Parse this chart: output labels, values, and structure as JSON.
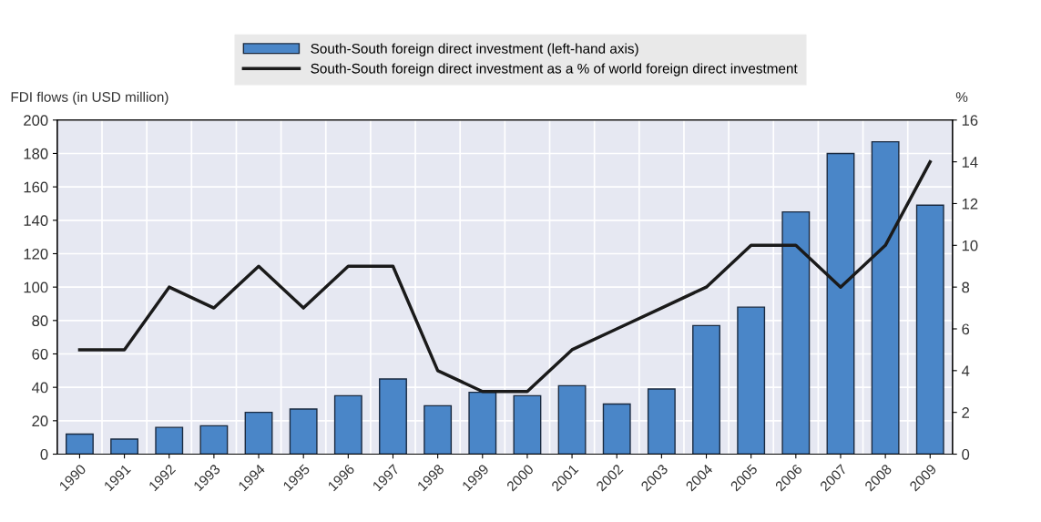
{
  "chart_data": {
    "type": "bar",
    "categories": [
      "1990",
      "1991",
      "1992",
      "1993",
      "1994",
      "1995",
      "1996",
      "1997",
      "1998",
      "1999",
      "2000",
      "2001",
      "2002",
      "2003",
      "2004",
      "2005",
      "2006",
      "2007",
      "2008",
      "2009"
    ],
    "series": [
      {
        "name": "South-South foreign direct investment (left-hand axis)",
        "color": "#4a86c8",
        "values": [
          12,
          9,
          16,
          17,
          25,
          27,
          35,
          45,
          29,
          37,
          35,
          41,
          30,
          39,
          77,
          88,
          145,
          180,
          187,
          149
        ]
      },
      {
        "name": "South-South foreign direct investment as a % of world foreign direct investment",
        "type": "line",
        "axis": "y2",
        "color": "#1a1a1a",
        "values": [
          5,
          5,
          8,
          7,
          9,
          7,
          9,
          9,
          4,
          3,
          3,
          5,
          6,
          7,
          8,
          10,
          10,
          8,
          10,
          14
        ]
      }
    ],
    "ylabel": "FDI flows (in USD million)",
    "y2label": "%",
    "ylim": [
      0,
      200
    ],
    "yticks": [
      0,
      20,
      40,
      60,
      80,
      100,
      120,
      140,
      160,
      180,
      200
    ],
    "y2lim": [
      0,
      16
    ],
    "y2ticks": [
      0,
      2,
      4,
      6,
      8,
      10,
      12,
      14,
      16
    ],
    "grid": true,
    "legend": "top",
    "marker": "none",
    "line_style": "solid"
  }
}
